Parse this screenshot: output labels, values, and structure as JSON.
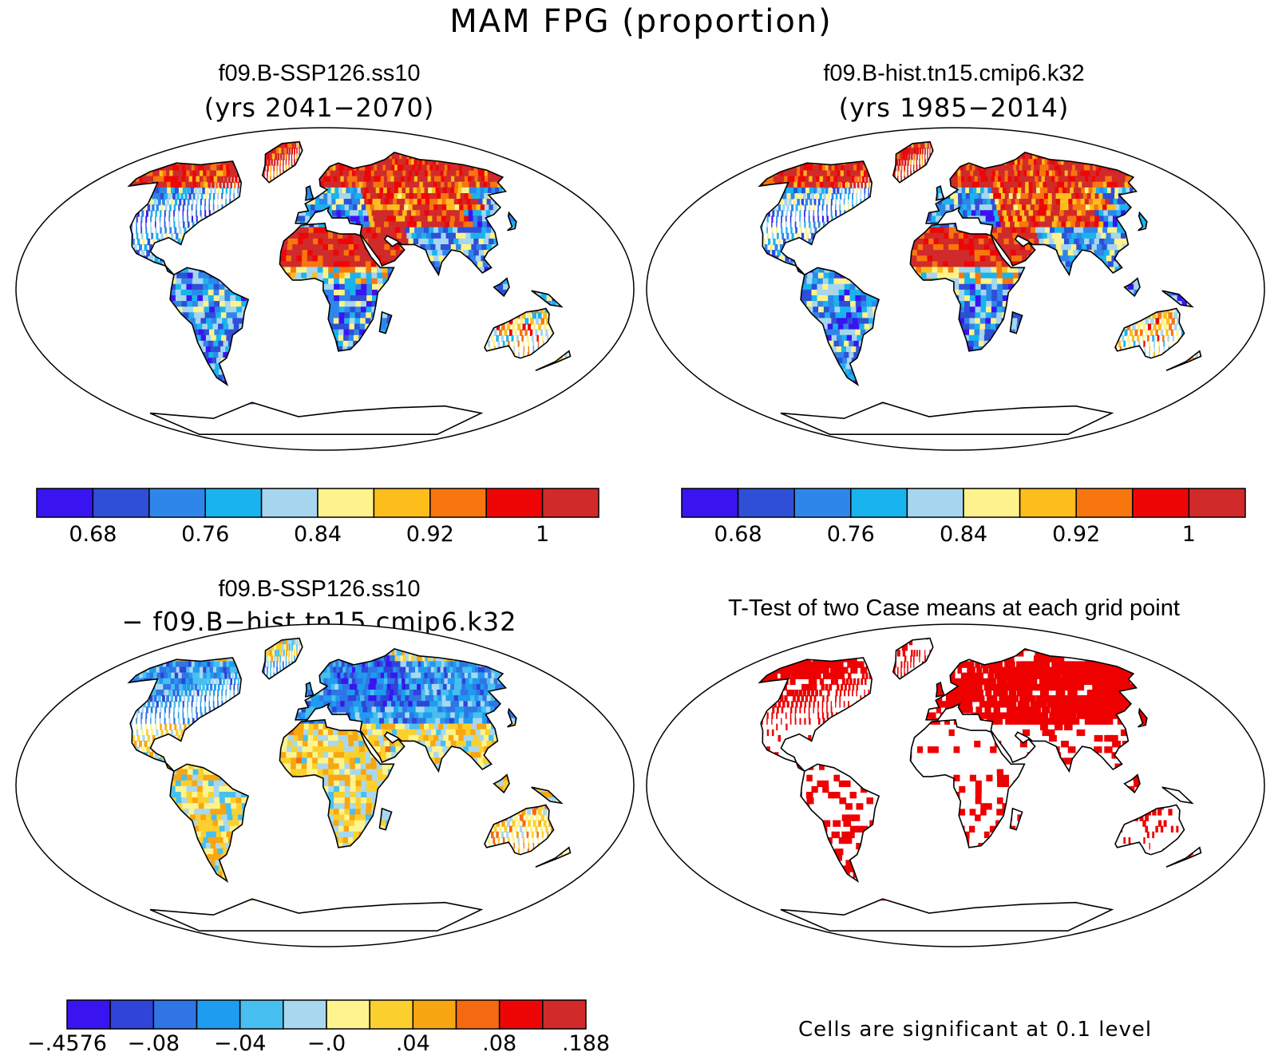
{
  "figure": {
    "title": "MAM FPG (proportion)"
  },
  "panels": {
    "top_left": {
      "title": "f09.B-SSP126.ss10",
      "subtitle": "(yrs 2041−2070)"
    },
    "top_right": {
      "title": "f09.B-hist.tn15.cmip6.k32",
      "subtitle": "(yrs 1985−2014)"
    },
    "bottom_left": {
      "title": "f09.B-SSP126.ss10",
      "subtitle": "− f09.B−hist.tn15.cmip6.k32"
    },
    "bottom_right": {
      "title": "T-Test of two Case means at each grid point",
      "note": "Cells are significant at 0.1 level"
    }
  },
  "colorbars": {
    "absolute": {
      "colors": [
        "#3a14f0",
        "#2e4fd6",
        "#2f86ea",
        "#19b4ef",
        "#a6d6ef",
        "#fdf28c",
        "#fdbe1c",
        "#f7760e",
        "#ee0606",
        "#d12a2a"
      ],
      "labels": [
        "0.68",
        "0.76",
        "0.84",
        "0.92",
        "1"
      ]
    },
    "difference": {
      "colors": [
        "#3a14f0",
        "#2f44d8",
        "#3075e6",
        "#1e9cef",
        "#47bff0",
        "#a8d8ef",
        "#fdf48e",
        "#fbd02e",
        "#f8a611",
        "#f56a10",
        "#ee0606",
        "#d12a2a"
      ],
      "labels": [
        "−.4576",
        "−.08",
        "−.04",
        "−.0",
        ".04",
        ".08",
        ".188"
      ]
    }
  },
  "colors": {
    "significant": "#ee0000",
    "coastline": "#000000",
    "background": "#ffffff"
  }
}
